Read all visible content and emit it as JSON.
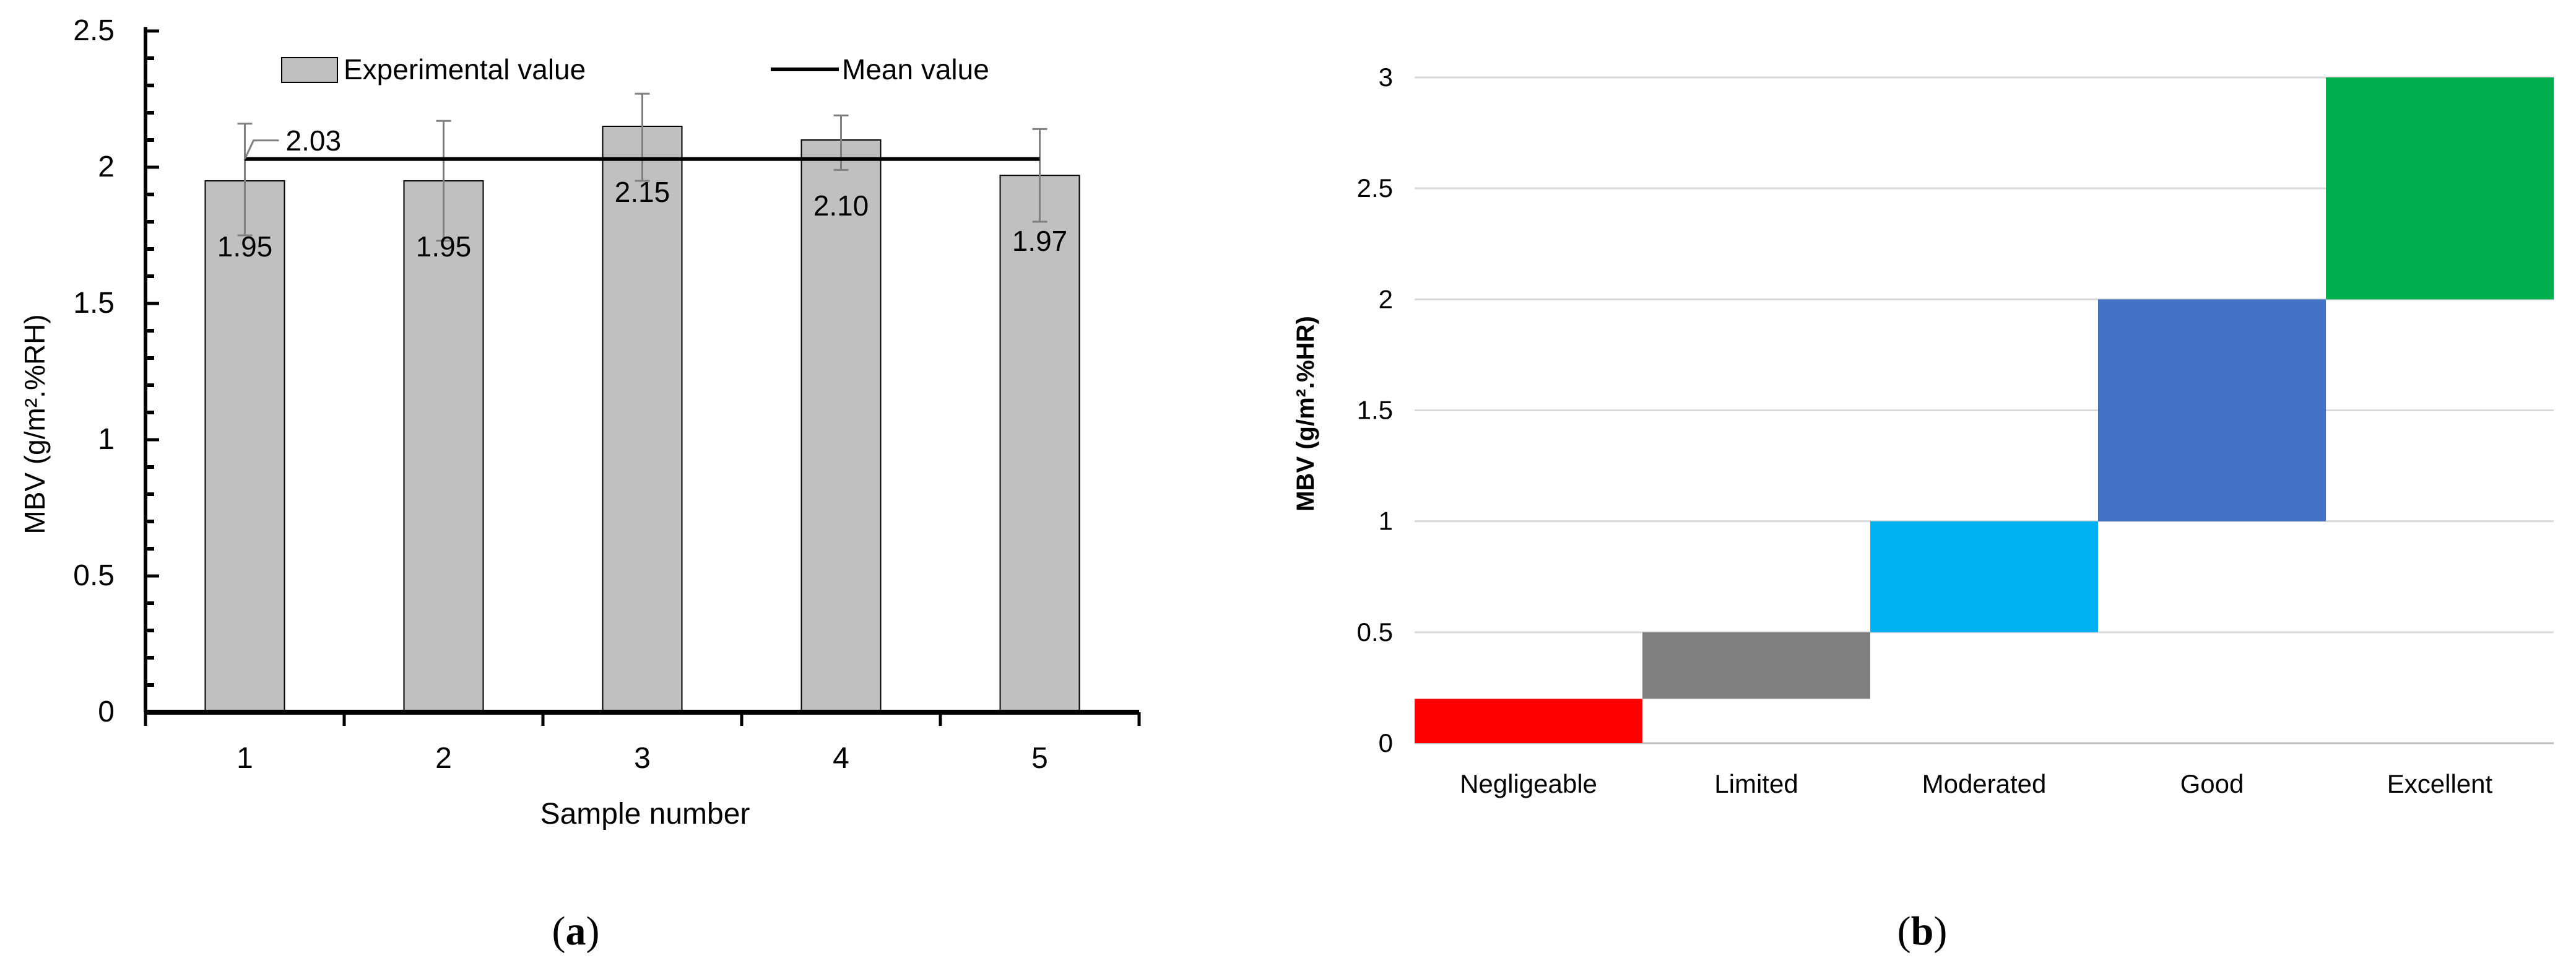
{
  "chart_data": [
    {
      "panel": "(a)",
      "panel_letter": "a",
      "type": "bar",
      "title": "",
      "xlabel": "Sample number",
      "ylabel": "MBV (g/m².%RH)",
      "ylim": [
        0,
        2.5
      ],
      "y_ticks": [
        "0",
        "0.5",
        "1",
        "1.5",
        "2",
        "2.5"
      ],
      "y_minor_step": 0.1,
      "categories": [
        "1",
        "2",
        "3",
        "4",
        "5"
      ],
      "series": [
        {
          "name": "Experimental value",
          "type": "bar",
          "color": "#c0c0c0",
          "values": [
            1.95,
            1.95,
            2.15,
            2.1,
            1.97
          ],
          "labels": [
            "1.95",
            "1.95",
            "2.15",
            "2.10",
            "1.97"
          ],
          "error_low": [
            1.75,
            1.73,
            1.95,
            1.99,
            1.8
          ],
          "error_high": [
            2.16,
            2.17,
            2.27,
            2.19,
            2.14
          ]
        },
        {
          "name": "Mean value",
          "type": "line",
          "color": "#000000",
          "value": 2.03,
          "label": "2.03"
        }
      ],
      "legend": "top",
      "grid": false
    },
    {
      "panel": "(b)",
      "panel_letter": "b",
      "type": "bar",
      "subtype": "floating-range",
      "title": "",
      "xlabel": "",
      "ylabel": "MBV (g/m².%HR)",
      "ylim": [
        0,
        3
      ],
      "y_ticks": [
        "0",
        "0.5",
        "1",
        "1.5",
        "2",
        "2.5",
        "3"
      ],
      "grid": true,
      "categories": [
        "Negligeable",
        "Limited",
        "Moderated",
        "Good",
        "Excellent"
      ],
      "ranges": [
        {
          "low": 0,
          "high": 0.2,
          "color": "#ff0000"
        },
        {
          "low": 0.2,
          "high": 0.5,
          "color": "#808080"
        },
        {
          "low": 0.5,
          "high": 1.0,
          "color": "#00b0f0"
        },
        {
          "low": 1.0,
          "high": 2.0,
          "color": "#4472c4"
        },
        {
          "low": 2.0,
          "high": 3.0,
          "color": "#00b050"
        }
      ]
    }
  ]
}
